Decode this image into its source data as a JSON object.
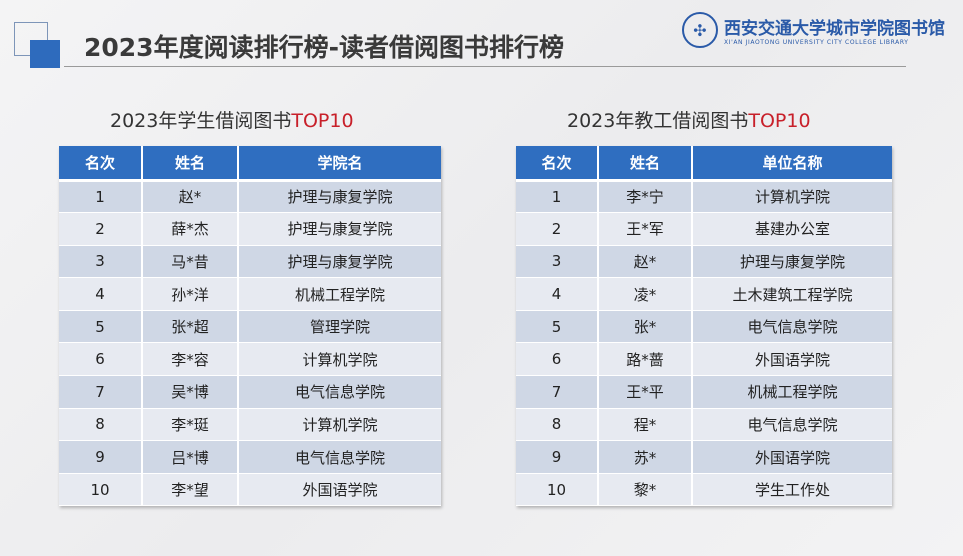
{
  "header": {
    "title": "2023年度阅读排行榜-读者借阅图书排行榜",
    "logo_cn": "西安交通大学城市学院图书馆",
    "logo_en": "XI'AN JIAOTONG UNIVERSITY CITY COLLEGE LIBRARY",
    "accent": "#2e6bbd"
  },
  "students": {
    "title_prefix": "2023年学生借阅图书",
    "title_highlight": "TOP10",
    "columns": [
      "名次",
      "姓名",
      "学院名"
    ],
    "rows": [
      [
        "1",
        "赵*",
        "护理与康复学院"
      ],
      [
        "2",
        "薛*杰",
        "护理与康复学院"
      ],
      [
        "3",
        "马*昔",
        "护理与康复学院"
      ],
      [
        "4",
        "孙*洋",
        "机械工程学院"
      ],
      [
        "5",
        "张*超",
        "管理学院"
      ],
      [
        "6",
        "李*容",
        "计算机学院"
      ],
      [
        "7",
        "吴*博",
        "电气信息学院"
      ],
      [
        "8",
        "李*珽",
        "计算机学院"
      ],
      [
        "9",
        "吕*博",
        "电气信息学院"
      ],
      [
        "10",
        "李*望",
        "外国语学院"
      ]
    ]
  },
  "staff": {
    "title_prefix": "2023年教工借阅图书",
    "title_highlight": "TOP10",
    "columns": [
      "名次",
      "姓名",
      "单位名称"
    ],
    "rows": [
      [
        "1",
        "李*宁",
        "计算机学院"
      ],
      [
        "2",
        "王*军",
        "基建办公室"
      ],
      [
        "3",
        "赵*",
        "护理与康复学院"
      ],
      [
        "4",
        "凌*",
        "土木建筑工程学院"
      ],
      [
        "5",
        "张*",
        "电气信息学院"
      ],
      [
        "6",
        "路*蔷",
        "外国语学院"
      ],
      [
        "7",
        "王*平",
        "机械工程学院"
      ],
      [
        "8",
        "程*",
        "电气信息学院"
      ],
      [
        "9",
        "苏*",
        "外国语学院"
      ],
      [
        "10",
        "黎*",
        "学生工作处"
      ]
    ]
  }
}
